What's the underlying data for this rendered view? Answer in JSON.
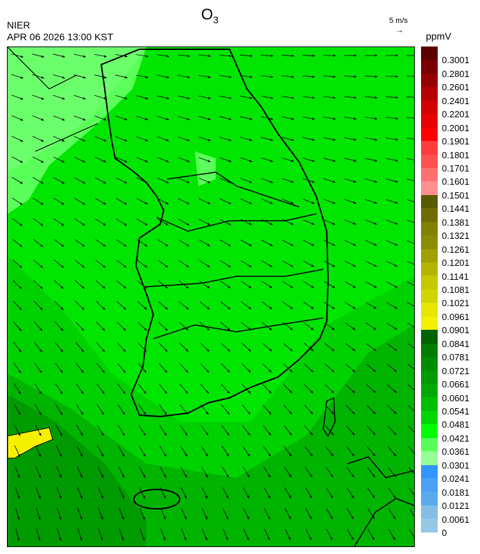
{
  "header": {
    "title_main": "O",
    "title_sub": "3",
    "org": "NIER",
    "datetime": "APR 06 2026 13:00 KST",
    "wind_scale": "5 m/s",
    "wind_arrow": "→"
  },
  "legend": {
    "unit": "ppmV",
    "labels": [
      "0.3001",
      "0.2801",
      "0.2601",
      "0.2401",
      "0.2201",
      "0.2001",
      "0.1901",
      "0.1801",
      "0.1701",
      "0.1601",
      "0.1501",
      "0.1441",
      "0.1381",
      "0.1321",
      "0.1261",
      "0.1201",
      "0.1141",
      "0.1081",
      "0.1021",
      "0.0961",
      "0.0901",
      "0.0841",
      "0.0781",
      "0.0721",
      "0.0661",
      "0.0601",
      "0.0541",
      "0.0481",
      "0.0421",
      "0.0361",
      "0.0301",
      "0.0241",
      "0.0181",
      "0.0121",
      "0.0061",
      "0"
    ],
    "colors": [
      "#5a0000",
      "#780000",
      "#960000",
      "#b40000",
      "#d20000",
      "#e60000",
      "#ff0000",
      "#ff3c3c",
      "#ff5050",
      "#ff7070",
      "#ff9090",
      "#5a5a00",
      "#6e6e00",
      "#828200",
      "#8c8c00",
      "#a0a000",
      "#b4b400",
      "#c8c800",
      "#d4d400",
      "#e6e600",
      "#f5f000",
      "#006400",
      "#007d00",
      "#008c00",
      "#009b00",
      "#00aa00",
      "#00be00",
      "#00d700",
      "#00ff00",
      "#5aff5a",
      "#96ff96",
      "#3296ff",
      "#4ba0f5",
      "#5aaaee",
      "#82bee6",
      "#96c8e6"
    ]
  },
  "map": {
    "field_colors": {
      "light": "#5aff5a",
      "bright": "#00f000",
      "mid": "#00d700",
      "dark": "#00aa00",
      "darker": "#009b00",
      "high": "#f5f000"
    }
  }
}
